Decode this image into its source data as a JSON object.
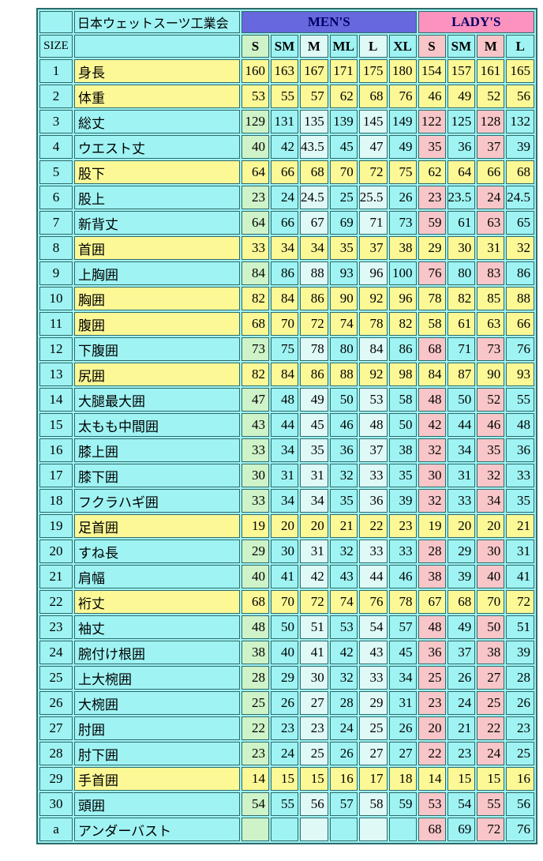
{
  "header": {
    "corner_label": "",
    "title": "日本ウェットスーツ工業会",
    "mens_label": "MEN'S",
    "ladys_label": "LADY'S",
    "size_label": "SIZE",
    "empty_label": "",
    "mens_sizes": [
      "S",
      "SM",
      "M",
      "ML",
      "L",
      "XL"
    ],
    "ladys_sizes": [
      "S",
      "SM",
      "M",
      "L"
    ]
  },
  "colors": {
    "cell_cyan": "#9FF3F3",
    "cell_yellow": "#FCF896",
    "col_s_green": "#CFF3C8",
    "col_pale_cyan": "#DFF9F7",
    "col_pink": "#F8C6C8",
    "mens_header": "#6767DE",
    "ladys_header": "#FC92BE",
    "grid_border": "#2D6A6A",
    "header_text": "#000066"
  },
  "rows": [
    {
      "no": "1",
      "label": "身長",
      "row_type": "yellow",
      "values": [
        "160",
        "163",
        "167",
        "171",
        "175",
        "180",
        "154",
        "157",
        "161",
        "165"
      ]
    },
    {
      "no": "2",
      "label": "体重",
      "row_type": "yellow",
      "values": [
        "53",
        "55",
        "57",
        "62",
        "68",
        "76",
        "46",
        "49",
        "52",
        "56"
      ]
    },
    {
      "no": "3",
      "label": "総丈",
      "row_type": "cyan",
      "values": [
        "129",
        "131",
        "135",
        "139",
        "145",
        "149",
        "122",
        "125",
        "128",
        "132"
      ]
    },
    {
      "no": "4",
      "label": "ウエスト丈",
      "row_type": "cyan",
      "values": [
        "40",
        "42",
        "43.5",
        "45",
        "47",
        "49",
        "35",
        "36",
        "37",
        "39"
      ]
    },
    {
      "no": "5",
      "label": "股下",
      "row_type": "yellow",
      "values": [
        "64",
        "66",
        "68",
        "70",
        "72",
        "75",
        "62",
        "64",
        "66",
        "68"
      ]
    },
    {
      "no": "6",
      "label": "股上",
      "row_type": "cyan",
      "values": [
        "23",
        "24",
        "24.5",
        "25",
        "25.5",
        "26",
        "23",
        "23.5",
        "24",
        "24.5"
      ]
    },
    {
      "no": "7",
      "label": "新背丈",
      "row_type": "cyan",
      "values": [
        "64",
        "66",
        "67",
        "69",
        "71",
        "73",
        "59",
        "61",
        "63",
        "65"
      ]
    },
    {
      "no": "8",
      "label": "首囲",
      "row_type": "yellow",
      "values": [
        "33",
        "34",
        "34",
        "35",
        "37",
        "38",
        "29",
        "30",
        "31",
        "32"
      ]
    },
    {
      "no": "9",
      "label": "上胸囲",
      "row_type": "cyan",
      "values": [
        "84",
        "86",
        "88",
        "93",
        "96",
        "100",
        "76",
        "80",
        "83",
        "86"
      ]
    },
    {
      "no": "10",
      "label": "胸囲",
      "row_type": "yellow",
      "values": [
        "82",
        "84",
        "86",
        "90",
        "92",
        "96",
        "78",
        "82",
        "85",
        "88"
      ]
    },
    {
      "no": "11",
      "label": "腹囲",
      "row_type": "yellow",
      "values": [
        "68",
        "70",
        "72",
        "74",
        "78",
        "82",
        "58",
        "61",
        "63",
        "66"
      ]
    },
    {
      "no": "12",
      "label": "下腹囲",
      "row_type": "cyan",
      "values": [
        "73",
        "75",
        "78",
        "80",
        "84",
        "86",
        "68",
        "71",
        "73",
        "76"
      ]
    },
    {
      "no": "13",
      "label": "尻囲",
      "row_type": "yellow",
      "values": [
        "82",
        "84",
        "86",
        "88",
        "92",
        "98",
        "84",
        "87",
        "90",
        "93"
      ]
    },
    {
      "no": "14",
      "label": "大腿最大囲",
      "row_type": "cyan",
      "values": [
        "47",
        "48",
        "49",
        "50",
        "53",
        "58",
        "48",
        "50",
        "52",
        "55"
      ]
    },
    {
      "no": "15",
      "label": "太もも中間囲",
      "row_type": "cyan",
      "values": [
        "43",
        "44",
        "45",
        "46",
        "48",
        "50",
        "42",
        "44",
        "46",
        "48"
      ]
    },
    {
      "no": "16",
      "label": "膝上囲",
      "row_type": "cyan",
      "values": [
        "33",
        "34",
        "35",
        "36",
        "37",
        "38",
        "32",
        "34",
        "35",
        "36"
      ]
    },
    {
      "no": "17",
      "label": "膝下囲",
      "row_type": "cyan",
      "values": [
        "30",
        "31",
        "31",
        "32",
        "33",
        "35",
        "30",
        "31",
        "32",
        "33"
      ]
    },
    {
      "no": "18",
      "label": "フクラハギ囲",
      "row_type": "cyan",
      "values": [
        "33",
        "34",
        "34",
        "35",
        "36",
        "39",
        "32",
        "33",
        "34",
        "35"
      ]
    },
    {
      "no": "19",
      "label": "足首囲",
      "row_type": "yellow",
      "values": [
        "19",
        "20",
        "20",
        "21",
        "22",
        "23",
        "19",
        "20",
        "20",
        "21"
      ]
    },
    {
      "no": "20",
      "label": "すね長",
      "row_type": "cyan",
      "values": [
        "29",
        "30",
        "31",
        "32",
        "33",
        "33",
        "28",
        "29",
        "30",
        "31"
      ]
    },
    {
      "no": "21",
      "label": "肩幅",
      "row_type": "cyan",
      "values": [
        "40",
        "41",
        "42",
        "43",
        "44",
        "46",
        "38",
        "39",
        "40",
        "41"
      ]
    },
    {
      "no": "22",
      "label": "裄丈",
      "row_type": "yellow",
      "values": [
        "68",
        "70",
        "72",
        "74",
        "76",
        "78",
        "67",
        "68",
        "70",
        "72"
      ]
    },
    {
      "no": "23",
      "label": "袖丈",
      "row_type": "cyan",
      "values": [
        "48",
        "50",
        "51",
        "53",
        "54",
        "57",
        "48",
        "49",
        "50",
        "51"
      ]
    },
    {
      "no": "24",
      "label": "腕付け根囲",
      "row_type": "cyan",
      "values": [
        "38",
        "40",
        "41",
        "42",
        "43",
        "45",
        "36",
        "37",
        "38",
        "39"
      ]
    },
    {
      "no": "25",
      "label": "上大椀囲",
      "row_type": "cyan",
      "values": [
        "28",
        "29",
        "30",
        "32",
        "33",
        "34",
        "25",
        "26",
        "27",
        "28"
      ]
    },
    {
      "no": "26",
      "label": "大椀囲",
      "row_type": "cyan",
      "values": [
        "25",
        "26",
        "27",
        "28",
        "29",
        "31",
        "23",
        "24",
        "25",
        "26"
      ]
    },
    {
      "no": "27",
      "label": "肘囲",
      "row_type": "cyan",
      "values": [
        "22",
        "23",
        "23",
        "24",
        "25",
        "26",
        "20",
        "21",
        "22",
        "23"
      ]
    },
    {
      "no": "28",
      "label": "肘下囲",
      "row_type": "cyan",
      "values": [
        "23",
        "24",
        "25",
        "26",
        "27",
        "27",
        "22",
        "23",
        "24",
        "25"
      ]
    },
    {
      "no": "29",
      "label": "手首囲",
      "row_type": "yellow",
      "values": [
        "14",
        "15",
        "15",
        "16",
        "17",
        "18",
        "14",
        "15",
        "15",
        "16"
      ]
    },
    {
      "no": "30",
      "label": "頭囲",
      "row_type": "cyan",
      "values": [
        "54",
        "55",
        "56",
        "57",
        "58",
        "59",
        "53",
        "54",
        "55",
        "56"
      ]
    },
    {
      "no": "a",
      "label": "アンダーバスト",
      "row_type": "cyan",
      "values": [
        "",
        "",
        "",
        "",
        "",
        "",
        "68",
        "69",
        "72",
        "76"
      ]
    }
  ]
}
